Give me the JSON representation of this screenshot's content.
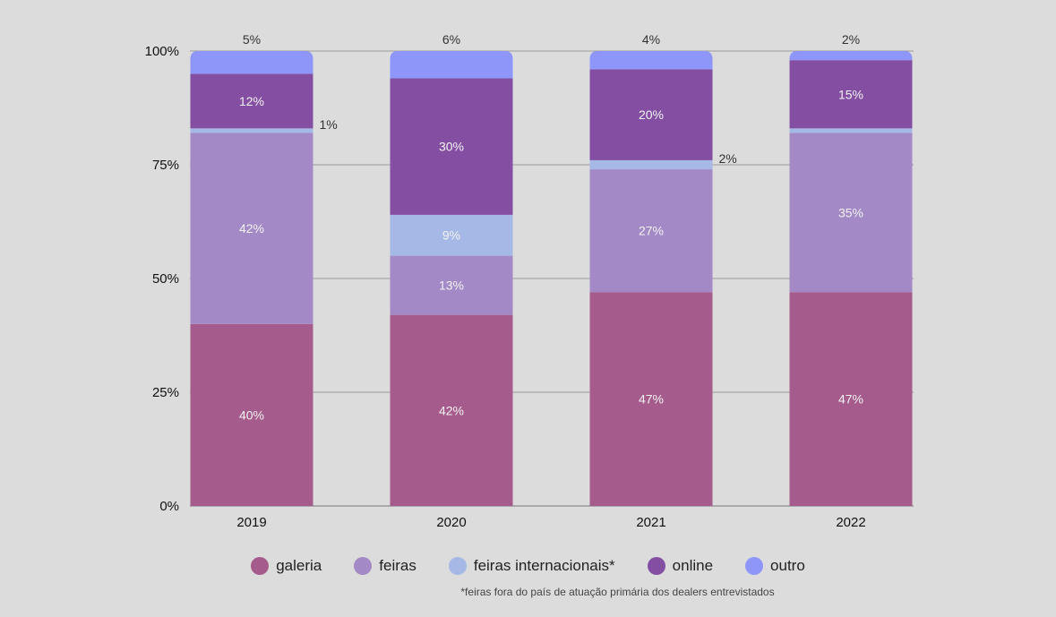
{
  "chart_data": {
    "type": "bar",
    "stacked": true,
    "categories": [
      "2019",
      "2020",
      "2021",
      "2022"
    ],
    "ylim": [
      0,
      100
    ],
    "yticks": [
      "0%",
      "25%",
      "50%",
      "75%",
      "100%"
    ],
    "ytick_values": [
      0,
      25,
      50,
      75,
      100
    ],
    "grid": true,
    "legend_position": "bottom",
    "series": [
      {
        "name": "galeria",
        "color": "#a55c8c",
        "values": [
          40,
          42,
          47,
          47
        ],
        "labels": [
          "40%",
          "42%",
          "47%",
          "47%"
        ]
      },
      {
        "name": "feiras",
        "color": "#a389c5",
        "values": [
          42,
          13,
          27,
          35
        ],
        "labels": [
          "42%",
          "13%",
          "27%",
          "35%"
        ]
      },
      {
        "name": "feiras internacionais*",
        "color": "#a6b9e6",
        "values": [
          1,
          9,
          2,
          1
        ],
        "labels": [
          "1%",
          "9%",
          "2%",
          ""
        ]
      },
      {
        "name": "online",
        "color": "#844fa3",
        "values": [
          12,
          30,
          20,
          15
        ],
        "labels": [
          "12%",
          "30%",
          "20%",
          "15%"
        ]
      },
      {
        "name": "outro",
        "color": "#8e96fa",
        "values": [
          5,
          6,
          4,
          2
        ],
        "labels": [
          "5%",
          "6%",
          "4%",
          "2%"
        ]
      }
    ],
    "footnote": "*feiras fora do país de atuação primária dos dealers entrevistados"
  }
}
